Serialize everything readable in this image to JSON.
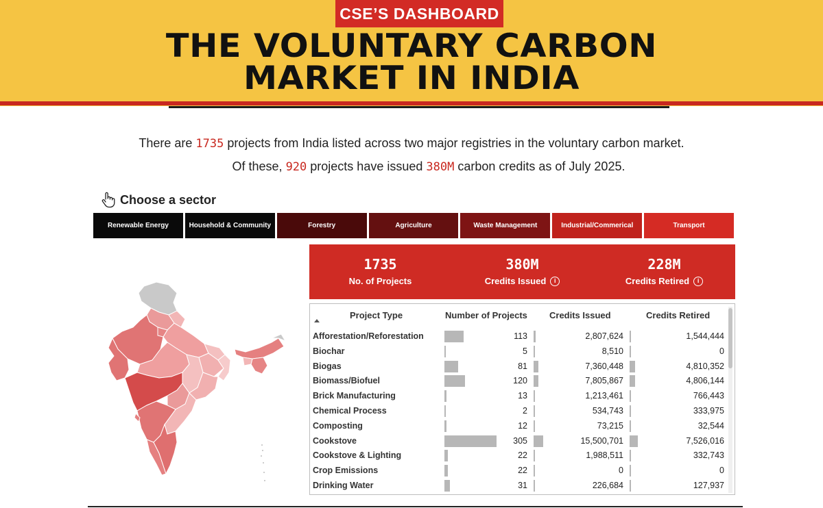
{
  "header": {
    "badge": "CSE’S DASHBOARD",
    "title_line1": "THE VOLUNTARY CARBON",
    "title_line2": "MARKET IN INDIA"
  },
  "intro": {
    "l1_pre": "There are ",
    "l1_projects": "1735",
    "l1_mid": " projects from India",
    "l1_post": " listed across two major registries in the voluntary carbon market.",
    "l2_pre": "Of  these, ",
    "l2_issued_projects": "920",
    "l2_mid": " projects have issued ",
    "l2_credits": "380M",
    "l2_post": " carbon credits as of July 2025."
  },
  "choose": {
    "label": "Choose a sector",
    "icon": "hand-pointer-icon"
  },
  "sectors": [
    {
      "label": "Renewable Energy",
      "color": "#0a0a0a"
    },
    {
      "label": "Household & Community",
      "color": "#0a0a0a"
    },
    {
      "label": "Forestry",
      "color": "#4a0a0a"
    },
    {
      "label": "Agriculture",
      "color": "#641010"
    },
    {
      "label": "Waste Management",
      "color": "#7e1414"
    },
    {
      "label": "Industrial/Commerical",
      "color": "#c0221c"
    },
    {
      "label": "Transport",
      "color": "#d52b24"
    }
  ],
  "kpis": [
    {
      "value": "1735",
      "label": "No. of Projects",
      "info": false
    },
    {
      "value": "380M",
      "label": "Credits Issued",
      "info": true
    },
    {
      "value": "228M",
      "label": "Credits Retired",
      "info": true
    }
  ],
  "table": {
    "headers": {
      "type": "Project Type",
      "projects": "Number of Projects",
      "issued": "Credits Issued",
      "retired": "Credits Retired"
    },
    "rows": [
      {
        "type": "Afforestation/Reforestation",
        "projects": "113",
        "issued": "2,807,624",
        "retired": "1,544,444",
        "p": 113,
        "i": 2807624,
        "r": 1544444
      },
      {
        "type": "Biochar",
        "projects": "5",
        "issued": "8,510",
        "retired": "0",
        "p": 5,
        "i": 8510,
        "r": 0
      },
      {
        "type": "Biogas",
        "projects": "81",
        "issued": "7,360,448",
        "retired": "4,810,352",
        "p": 81,
        "i": 7360448,
        "r": 4810352
      },
      {
        "type": "Biomass/Biofuel",
        "projects": "120",
        "issued": "7,805,867",
        "retired": "4,806,144",
        "p": 120,
        "i": 7805867,
        "r": 4806144
      },
      {
        "type": "Brick Manufacturing",
        "projects": "13",
        "issued": "1,213,461",
        "retired": "766,443",
        "p": 13,
        "i": 1213461,
        "r": 766443
      },
      {
        "type": "Chemical Process",
        "projects": "2",
        "issued": "534,743",
        "retired": "333,975",
        "p": 2,
        "i": 534743,
        "r": 333975
      },
      {
        "type": "Composting",
        "projects": "12",
        "issued": "73,215",
        "retired": "32,544",
        "p": 12,
        "i": 73215,
        "r": 32544
      },
      {
        "type": "Cookstove",
        "projects": "305",
        "issued": "15,500,701",
        "retired": "7,526,016",
        "p": 305,
        "i": 15500701,
        "r": 7526016
      },
      {
        "type": "Cookstove & Lighting",
        "projects": "22",
        "issued": "1,988,511",
        "retired": "332,743",
        "p": 22,
        "i": 1988511,
        "r": 332743
      },
      {
        "type": "Crop Emissions",
        "projects": "22",
        "issued": "0",
        "retired": "0",
        "p": 22,
        "i": 0,
        "r": 0
      },
      {
        "type": "Drinking Water",
        "projects": "31",
        "issued": "226,684",
        "retired": "127,937",
        "p": 31,
        "i": 226684,
        "r": 127937
      }
    ]
  },
  "colors": {
    "accent_red": "#cf2b24",
    "header_yellow": "#f5c443",
    "bar_grey": "#b7b7b7"
  }
}
